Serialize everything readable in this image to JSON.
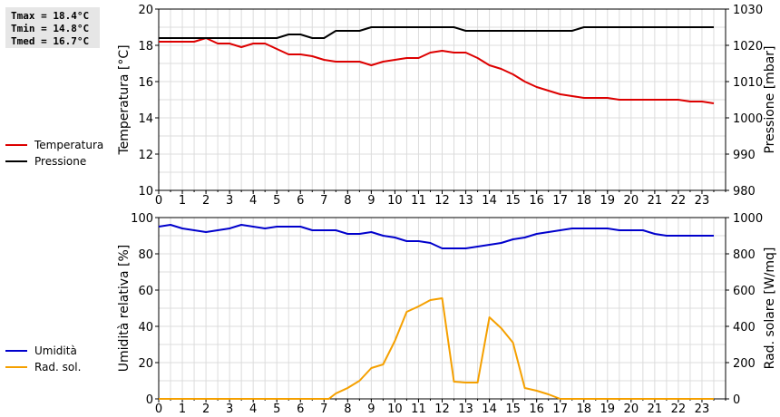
{
  "stats": {
    "tmax": "Tmax = 18.4°C",
    "tmin": "Tmin = 14.8°C",
    "tmed": "Tmed = 16.7°C"
  },
  "chart_data": [
    {
      "type": "line",
      "x_ticks": [
        "0",
        "1",
        "2",
        "3",
        "4",
        "5",
        "6",
        "7",
        "8",
        "9",
        "10",
        "11",
        "12",
        "13",
        "14",
        "15",
        "16",
        "17",
        "18",
        "19",
        "20",
        "21",
        "22",
        "23"
      ],
      "xlim": [
        0,
        24
      ],
      "ylabel": "Temperatura [°C]",
      "ylim": [
        10,
        20
      ],
      "y_ticks": [
        "10",
        "12",
        "14",
        "16",
        "18",
        "20"
      ],
      "ylabel_right": "Pressione [mbar]",
      "ylim_right": [
        980,
        1030
      ],
      "y_ticks_right": [
        "980",
        "990",
        "1000",
        "1010",
        "1020",
        "1030"
      ],
      "grid": true,
      "legend_position": "left",
      "series": [
        {
          "name": "Temperatura",
          "axis": "left",
          "color": "#dd0000",
          "x": [
            0,
            0.5,
            1,
            1.5,
            2,
            2.5,
            3,
            3.5,
            4,
            4.5,
            5,
            5.5,
            6,
            6.5,
            7,
            7.5,
            8,
            8.5,
            9,
            9.5,
            10,
            10.5,
            11,
            11.5,
            12,
            12.5,
            13,
            13.5,
            14,
            14.5,
            15,
            15.5,
            16,
            16.5,
            17,
            17.5,
            18,
            18.5,
            19,
            19.5,
            20,
            20.5,
            21,
            21.5,
            22,
            22.5,
            23,
            23.5
          ],
          "values": [
            18.2,
            18.2,
            18.2,
            18.2,
            18.4,
            18.1,
            18.1,
            17.9,
            18.1,
            18.1,
            17.8,
            17.5,
            17.5,
            17.4,
            17.2,
            17.1,
            17.1,
            17.1,
            16.9,
            17.1,
            17.2,
            17.3,
            17.3,
            17.6,
            17.7,
            17.6,
            17.6,
            17.3,
            16.9,
            16.7,
            16.4,
            16.0,
            15.7,
            15.5,
            15.3,
            15.2,
            15.1,
            15.1,
            15.1,
            15.0,
            15.0,
            15.0,
            15.0,
            15.0,
            15.0,
            14.9,
            14.9,
            14.8
          ]
        },
        {
          "name": "Pressione",
          "axis": "right",
          "color": "#000000",
          "x": [
            0,
            0.5,
            1,
            1.5,
            2,
            2.5,
            3,
            3.5,
            4,
            4.5,
            5,
            5.5,
            6,
            6.5,
            7,
            7.5,
            8,
            8.5,
            9,
            9.5,
            10,
            10.5,
            11,
            11.5,
            12,
            12.5,
            13,
            13.5,
            14,
            14.5,
            15,
            15.5,
            16,
            16.5,
            17,
            17.5,
            18,
            18.5,
            19,
            19.5,
            20,
            20.5,
            21,
            21.5,
            22,
            22.5,
            23,
            23.5
          ],
          "values": [
            1022,
            1022,
            1022,
            1022,
            1022,
            1022,
            1022,
            1022,
            1022,
            1022,
            1022,
            1023,
            1023,
            1022,
            1022,
            1024,
            1024,
            1024,
            1025,
            1025,
            1025,
            1025,
            1025,
            1025,
            1025,
            1025,
            1024,
            1024,
            1024,
            1024,
            1024,
            1024,
            1024,
            1024,
            1024,
            1024,
            1025,
            1025,
            1025,
            1025,
            1025,
            1025,
            1025,
            1025,
            1025,
            1025,
            1025,
            1025
          ]
        }
      ]
    },
    {
      "type": "line",
      "x_ticks": [
        "0",
        "1",
        "2",
        "3",
        "4",
        "5",
        "6",
        "7",
        "8",
        "9",
        "10",
        "11",
        "12",
        "13",
        "14",
        "15",
        "16",
        "17",
        "18",
        "19",
        "20",
        "21",
        "22",
        "23"
      ],
      "xlim": [
        0,
        24
      ],
      "ylabel": "Umidità relativa [%]",
      "ylim": [
        0,
        100
      ],
      "y_ticks": [
        "0",
        "20",
        "40",
        "60",
        "80",
        "100"
      ],
      "ylabel_right": "Rad. solare [W/mq]",
      "ylim_right": [
        0,
        1000
      ],
      "y_ticks_right": [
        "0",
        "200",
        "400",
        "600",
        "800",
        "1000"
      ],
      "grid": true,
      "legend_position": "left",
      "series": [
        {
          "name": "Umidità",
          "axis": "left",
          "color": "#0000cc",
          "x": [
            0,
            0.5,
            1,
            1.5,
            2,
            2.5,
            3,
            3.5,
            4,
            4.5,
            5,
            5.5,
            6,
            6.5,
            7,
            7.5,
            8,
            8.5,
            9,
            9.5,
            10,
            10.5,
            11,
            11.5,
            12,
            12.5,
            13,
            13.5,
            14,
            14.5,
            15,
            15.5,
            16,
            16.5,
            17,
            17.5,
            18,
            18.5,
            19,
            19.5,
            20,
            20.5,
            21,
            21.5,
            22,
            22.5,
            23,
            23.5
          ],
          "values": [
            95,
            96,
            94,
            93,
            92,
            93,
            94,
            96,
            95,
            94,
            95,
            95,
            95,
            93,
            93,
            93,
            91,
            91,
            92,
            90,
            89,
            87,
            87,
            86,
            83,
            83,
            83,
            84,
            85,
            86,
            88,
            89,
            91,
            92,
            93,
            94,
            94,
            94,
            94,
            93,
            93,
            93,
            91,
            90,
            90,
            90,
            90,
            90
          ]
        },
        {
          "name": "Rad. sol.",
          "axis": "right",
          "color": "#f5a000",
          "x": [
            0,
            0.5,
            1,
            1.5,
            2,
            2.5,
            3,
            3.5,
            4,
            4.5,
            5,
            5.5,
            6,
            6.5,
            7,
            7.2,
            7.5,
            8,
            8.5,
            9,
            9.5,
            10,
            10.5,
            11,
            11.5,
            12,
            12.5,
            13,
            13.5,
            14,
            14.5,
            15,
            15.5,
            16,
            16.5,
            17,
            17.5,
            18,
            18.5,
            19,
            19.5,
            20,
            20.5,
            21,
            21.5,
            22,
            22.5,
            23,
            23.5
          ],
          "values": [
            0,
            0,
            0,
            0,
            0,
            0,
            0,
            0,
            0,
            0,
            0,
            0,
            0,
            0,
            0,
            0,
            30,
            60,
            100,
            170,
            190,
            320,
            480,
            510,
            545,
            555,
            95,
            90,
            90,
            450,
            390,
            310,
            60,
            45,
            25,
            0,
            0,
            0,
            0,
            0,
            0,
            0,
            0,
            0,
            0,
            0,
            0,
            0,
            0
          ]
        }
      ]
    }
  ]
}
